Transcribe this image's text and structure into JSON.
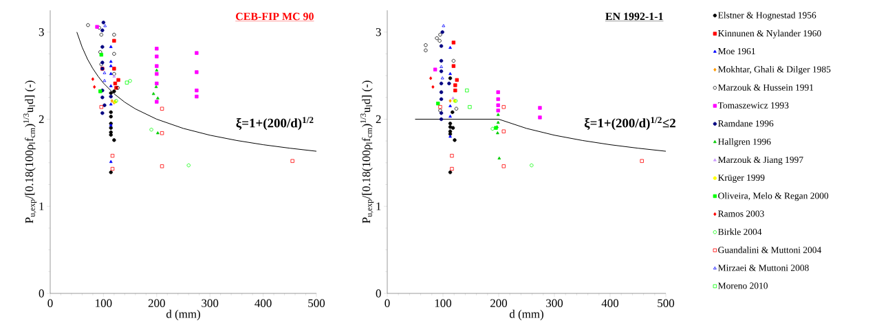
{
  "chart_data": [
    {
      "type": "scatter",
      "title": "CEB-FIP MC 90",
      "xlabel": "d (mm)",
      "ylabel": "P$_{u,exp}$/[0.18(100ρ$_{l}$f$_{cm}$)$^{1/3}$u$_{l}$d] (-)",
      "annotations": [
        "ξ=1+(200/d)$^{1/2}$"
      ],
      "xlim": [
        0,
        500
      ],
      "ylim": [
        0,
        3.25
      ],
      "xticks": [
        0,
        100,
        200,
        300,
        400,
        500
      ],
      "yticks": [
        0,
        1,
        2,
        3
      ],
      "series": [
        {
          "color": "#000000",
          "marker": "circle",
          "x": [
            114,
            114,
            114,
            114,
            114,
            114,
            114,
            120,
            114,
            120
          ],
          "values": [
            2.3,
            2.08,
            2.03,
            1.95,
            1.9,
            1.85,
            1.82,
            1.76,
            1.39,
            2.32
          ]
        },
        {
          "color": "#ff0000",
          "marker": "square",
          "x": [
            120,
            120,
            128,
            122,
            124,
            98
          ],
          "values": [
            2.9,
            2.58,
            2.45,
            2.41,
            2.36,
            2.58
          ]
        },
        {
          "color": "#0000ff",
          "marker": "triangle",
          "x": [
            114,
            114,
            114,
            114,
            114,
            114,
            114,
            114
          ],
          "values": [
            2.83,
            2.66,
            2.61,
            2.52,
            2.38,
            2.17,
            1.93,
            1.51
          ]
        },
        {
          "color": "#ff9900",
          "marker": "diamond",
          "x": [
            116,
            120
          ],
          "values": [
            2.21,
            2.19
          ]
        },
        {
          "color": "#000000",
          "marker": "circle",
          "x": [
            71,
            92,
            96,
            120,
            120,
            94,
            96,
            120,
            127
          ],
          "values": [
            3.08,
            3.05,
            2.97,
            2.97,
            2.75,
            2.77,
            2.63,
            2.52,
            2.36
          ]
        },
        {
          "color": "#ff00ff",
          "marker": "square",
          "x": [
            88,
            200,
            200,
            200,
            200,
            200,
            200,
            275,
            275,
            275,
            275
          ],
          "values": [
            3.06,
            2.81,
            2.72,
            2.61,
            2.52,
            2.41,
            2.2,
            2.76,
            2.54,
            2.33,
            2.26
          ]
        },
        {
          "color": "#000080",
          "marker": "circle",
          "x": [
            100,
            98,
            98,
            98,
            98,
            98,
            98,
            102,
            98,
            114
          ],
          "values": [
            3.11,
            3.02,
            2.83,
            2.65,
            2.58,
            2.33,
            2.25,
            2.16,
            2.07,
            2.26
          ]
        },
        {
          "color": "#00cc00",
          "marker": "triangle",
          "x": [
            200,
            199,
            194,
            202,
            202
          ],
          "values": [
            2.56,
            2.37,
            2.29,
            2.24,
            1.84
          ]
        },
        {
          "color": "#cc99ff",
          "marker": "triangle",
          "x": [
            120
          ],
          "values": [
            2.49
          ]
        },
        {
          "color": "#ffff00",
          "marker": "circle",
          "x": [
            122
          ],
          "values": [
            2.2
          ]
        },
        {
          "color": "#00ff00",
          "marker": "square",
          "x": [
            96,
            94
          ],
          "values": [
            2.74,
            2.32
          ]
        },
        {
          "color": "#ff0000",
          "marker": "diamond",
          "x": [
            80,
            83
          ],
          "values": [
            2.46,
            2.37
          ]
        },
        {
          "color": "#00ff00",
          "marker": "circle",
          "x": [
            150,
            124,
            190,
            260
          ],
          "values": [
            2.44,
            2.21,
            1.88,
            1.47
          ]
        },
        {
          "color": "#ff0000",
          "marker": "square",
          "x": [
            96,
            210,
            210,
            210,
            117,
            117,
            455
          ],
          "values": [
            2.14,
            2.12,
            1.84,
            1.46,
            1.58,
            1.43,
            1.52
          ]
        },
        {
          "color": "#0000ff",
          "marker": "triangle",
          "x": [
            103,
            102,
            102
          ],
          "values": [
            3.07,
            2.44,
            2.53
          ]
        },
        {
          "color": "#00ff00",
          "marker": "square",
          "x": [
            144
          ],
          "values": [
            2.42
          ]
        },
        {
          "type": "line",
          "color": "#000000",
          "marker": "none",
          "x": [
            50,
            60,
            70,
            80,
            90,
            100,
            120,
            140,
            160,
            200,
            250,
            300,
            350,
            400,
            450,
            500
          ],
          "values": [
            3.0,
            2.826,
            2.69,
            2.581,
            2.491,
            2.414,
            2.291,
            2.195,
            2.118,
            2.0,
            1.894,
            1.816,
            1.756,
            1.707,
            1.667,
            1.632
          ]
        }
      ]
    },
    {
      "type": "scatter",
      "title": "EN 1992-1-1",
      "xlabel": "d (mm)",
      "ylabel": "P$_{u,exp}$/[0.18(100ρ$_{l}$f$_{cm}$)$^{1/3}$u$_{l}$d] (-)",
      "annotations": [
        "ξ=1+(200/d)$^{1/2}$≤2"
      ],
      "xlim": [
        0,
        500
      ],
      "ylim": [
        0,
        3.25
      ],
      "xticks": [
        0,
        100,
        200,
        300,
        400,
        500
      ],
      "yticks": [
        0,
        1,
        2,
        3
      ],
      "legend": "right",
      "series": [
        {
          "name": "Elstner & Hognestad 1956",
          "color": "#000000",
          "marker": "circle",
          "x": [
            113,
            113,
            118,
            113,
            113,
            121,
            113,
            117,
            113
          ],
          "values": [
            1.95,
            1.91,
            1.9,
            1.86,
            1.83,
            1.76,
            1.39,
            2.08,
            2.47
          ]
        },
        {
          "name": "Kinnunen & Nylander 1960",
          "color": "#ff0000",
          "marker": "square",
          "x": [
            119,
            119,
            125,
            122,
            122
          ],
          "values": [
            2.88,
            2.61,
            2.45,
            2.39,
            2.33
          ]
        },
        {
          "name": "Moe 1961",
          "color": "#0000ff",
          "marker": "triangle",
          "x": [
            113,
            113,
            113,
            113,
            113
          ],
          "values": [
            2.82,
            2.52,
            2.15,
            2.03,
            1.8
          ]
        },
        {
          "name": "Mokhtar, Ghali & Dilger 1985",
          "color": "#ff9900",
          "marker": "diamond",
          "x": [
            113
          ],
          "values": [
            2.21
          ]
        },
        {
          "name": "Marzouk & Hussein 1991",
          "color": "#000000",
          "marker": "circle",
          "x": [
            69,
            69,
            89,
            95,
            94,
            119,
            124,
            95
          ],
          "values": [
            2.85,
            2.79,
            2.93,
            2.97,
            2.9,
            2.67,
            2.12,
            2.1
          ]
        },
        {
          "name": "Tomaszewicz 1993",
          "color": "#ff00ff",
          "marker": "square",
          "x": [
            86,
            199,
            199,
            199,
            199,
            274,
            274
          ],
          "values": [
            2.57,
            2.31,
            2.23,
            2.16,
            2.1,
            2.13,
            2.02
          ]
        },
        {
          "name": "Ramdane 1996",
          "color": "#000080",
          "marker": "circle",
          "x": [
            99,
            97,
            97,
            97,
            97,
            97,
            97,
            97,
            97,
            111
          ],
          "values": [
            3.0,
            2.84,
            2.67,
            2.55,
            2.41,
            2.31,
            2.23,
            2.07,
            2.0,
            2.41
          ]
        },
        {
          "name": "Hallgren 1996",
          "color": "#00cc00",
          "marker": "triangle",
          "x": [
            199,
            199,
            197,
            198,
            201
          ],
          "values": [
            2.05,
            1.96,
            1.91,
            1.84,
            1.55
          ]
        },
        {
          "name": "Marzouk & Jiang 1997",
          "color": "#cc99ff",
          "marker": "triangle",
          "x": [
            118
          ],
          "values": [
            2.24
          ]
        },
        {
          "name": "Krüger 1999",
          "color": "#ffff00",
          "marker": "circle",
          "x": [
            121
          ],
          "values": [
            2.21
          ]
        },
        {
          "name": "Oliveira, Melo & Regan 2000",
          "color": "#00ff00",
          "marker": "square",
          "x": [
            91,
            195
          ],
          "values": [
            2.18,
            1.9
          ]
        },
        {
          "name": "Ramos 2003",
          "color": "#ff0000",
          "marker": "diamond",
          "x": [
            78,
            82
          ],
          "values": [
            2.47,
            2.37
          ]
        },
        {
          "name": "Birkle 2004",
          "color": "#00ff00",
          "marker": "circle",
          "x": [
            123,
            189,
            259
          ],
          "values": [
            2.21,
            1.89,
            1.47
          ]
        },
        {
          "name": "Guandalini & Muttoni 2004",
          "color": "#ff0000",
          "marker": "square",
          "x": [
            95,
            209,
            209,
            209,
            116,
            116,
            457
          ],
          "values": [
            2.14,
            2.14,
            1.86,
            1.46,
            1.58,
            1.43,
            1.52
          ]
        },
        {
          "name": "Mirzaei & Muttoni 2008",
          "color": "#0000ff",
          "marker": "triangle",
          "x": [
            101,
            99,
            97
          ],
          "values": [
            3.07,
            2.47,
            2.6
          ]
        },
        {
          "name": "Moreno 2010",
          "color": "#00ff00",
          "marker": "square",
          "x": [
            143,
            148
          ],
          "values": [
            2.33,
            2.14
          ]
        },
        {
          "type": "line",
          "color": "#000000",
          "marker": "none",
          "x": [
            50,
            200,
            250,
            300,
            350,
            400,
            450,
            500
          ],
          "values": [
            2.0,
            2.0,
            1.894,
            1.816,
            1.756,
            1.707,
            1.667,
            1.632
          ]
        }
      ]
    }
  ]
}
